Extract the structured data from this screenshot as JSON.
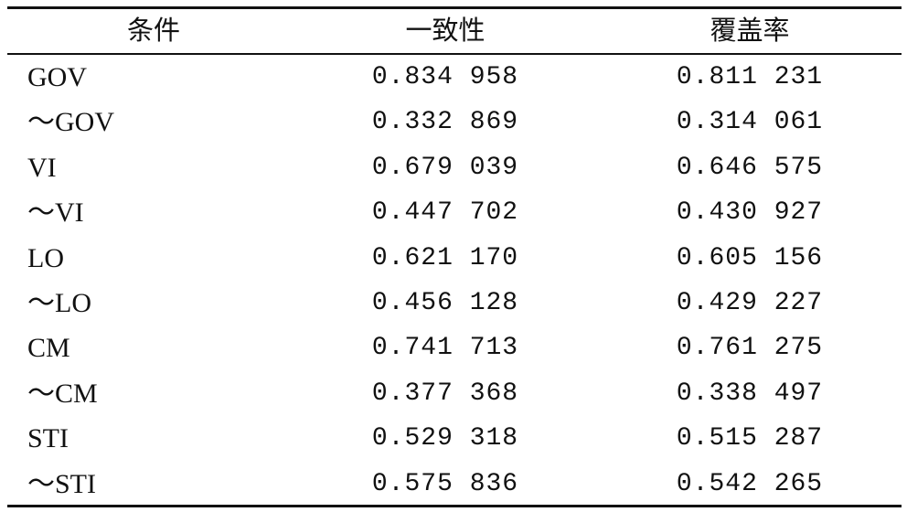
{
  "table": {
    "header": [
      "条件",
      "一致性",
      "覆盖率"
    ],
    "rows": [
      [
        "GOV",
        "0.834 958",
        "0.811 231"
      ],
      [
        "～GOV",
        "0.332 869",
        "0.314 061"
      ],
      [
        "VI",
        "0.679 039",
        "0.646 575"
      ],
      [
        "～VI",
        "0.447 702",
        "0.430 927"
      ],
      [
        "LO",
        "0.621 170",
        "0.605 156"
      ],
      [
        "～LO",
        "0.456 128",
        "0.429 227"
      ],
      [
        "CM",
        "0.741 713",
        "0.761 275"
      ],
      [
        "～CM",
        "0.377 368",
        "0.338 497"
      ],
      [
        "STI",
        "0.529 318",
        "0.515 287"
      ],
      [
        "～STI",
        "0.575 836",
        "0.542 265"
      ]
    ]
  }
}
